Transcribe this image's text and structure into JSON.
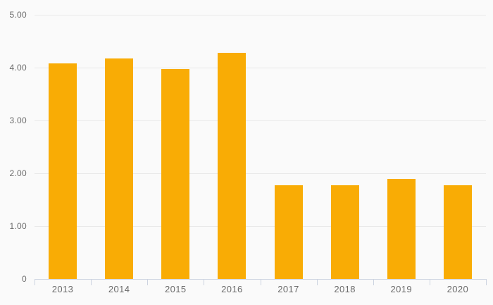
{
  "chart": {
    "background_color": "#fafafa",
    "bar_color": "#f9ac05",
    "gridline_color": "#e9e9e9",
    "axis_color": "#ccd3e0",
    "label_color": "#6b6b6b"
  },
  "chart_data": {
    "type": "bar",
    "title": "",
    "xlabel": "",
    "ylabel": "",
    "categories": [
      "2013",
      "2014",
      "2015",
      "2016",
      "2017",
      "2018",
      "2019",
      "2020"
    ],
    "values": [
      4.08,
      4.18,
      3.98,
      4.28,
      1.78,
      1.78,
      1.89,
      1.78
    ],
    "ylim": [
      0,
      5
    ],
    "yticks": [
      0,
      1,
      2,
      3,
      4,
      5
    ],
    "ytick_labels": [
      "0",
      "1.00",
      "2.00",
      "3.00",
      "4.00",
      "5.00"
    ],
    "grid": true,
    "legend": false
  }
}
